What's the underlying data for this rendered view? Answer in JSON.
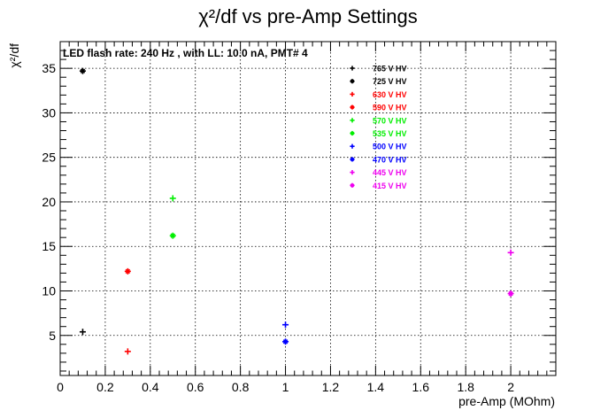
{
  "chart_data": {
    "type": "scatter",
    "title": "χ²/df vs pre-Amp Settings",
    "xlabel": "pre-Amp (MOhm)",
    "ylabel": "χ²/df",
    "annotation": "LED flash rate: 240 Hz , with LL: 10.0 nA, PMT# 4",
    "xlim": [
      0,
      2.2
    ],
    "ylim": [
      0.5,
      38
    ],
    "x_ticks": [
      "0",
      "0.2",
      "0.4",
      "0.6",
      "0.8",
      "1",
      "1.2",
      "1.4",
      "1.6",
      "1.8",
      "2"
    ],
    "y_ticks": [
      "5",
      "10",
      "15",
      "20",
      "25",
      "30",
      "35"
    ],
    "grid": true,
    "legend_position": "top-right",
    "series": [
      {
        "name": "765 V HV",
        "color": "#000000",
        "marker": "plus",
        "x": [
          0.1
        ],
        "y": [
          5.4
        ]
      },
      {
        "name": "725 V HV",
        "color": "#000000",
        "marker": "star",
        "x": [
          0.1
        ],
        "y": [
          34.7
        ]
      },
      {
        "name": "630 V HV",
        "color": "#ff0000",
        "marker": "plus",
        "x": [
          0.3
        ],
        "y": [
          3.2
        ]
      },
      {
        "name": "590 V HV",
        "color": "#ff0000",
        "marker": "star",
        "x": [
          0.3
        ],
        "y": [
          12.2
        ]
      },
      {
        "name": "570 V HV",
        "color": "#00ee00",
        "marker": "plus",
        "x": [
          0.5
        ],
        "y": [
          20.4
        ]
      },
      {
        "name": "535 V HV",
        "color": "#00ee00",
        "marker": "star",
        "x": [
          0.5
        ],
        "y": [
          16.2
        ]
      },
      {
        "name": "500 V HV",
        "color": "#0000ff",
        "marker": "plus",
        "x": [
          1.0
        ],
        "y": [
          6.2
        ]
      },
      {
        "name": "470 V HV",
        "color": "#0000ff",
        "marker": "star",
        "x": [
          1.0
        ],
        "y": [
          4.3
        ]
      },
      {
        "name": "445 V HV",
        "color": "#ee00ee",
        "marker": "plus",
        "x": [
          2.0
        ],
        "y": [
          14.3
        ]
      },
      {
        "name": "415 V HV",
        "color": "#ee00ee",
        "marker": "star",
        "x": [
          2.0
        ],
        "y": [
          9.7
        ]
      }
    ]
  }
}
